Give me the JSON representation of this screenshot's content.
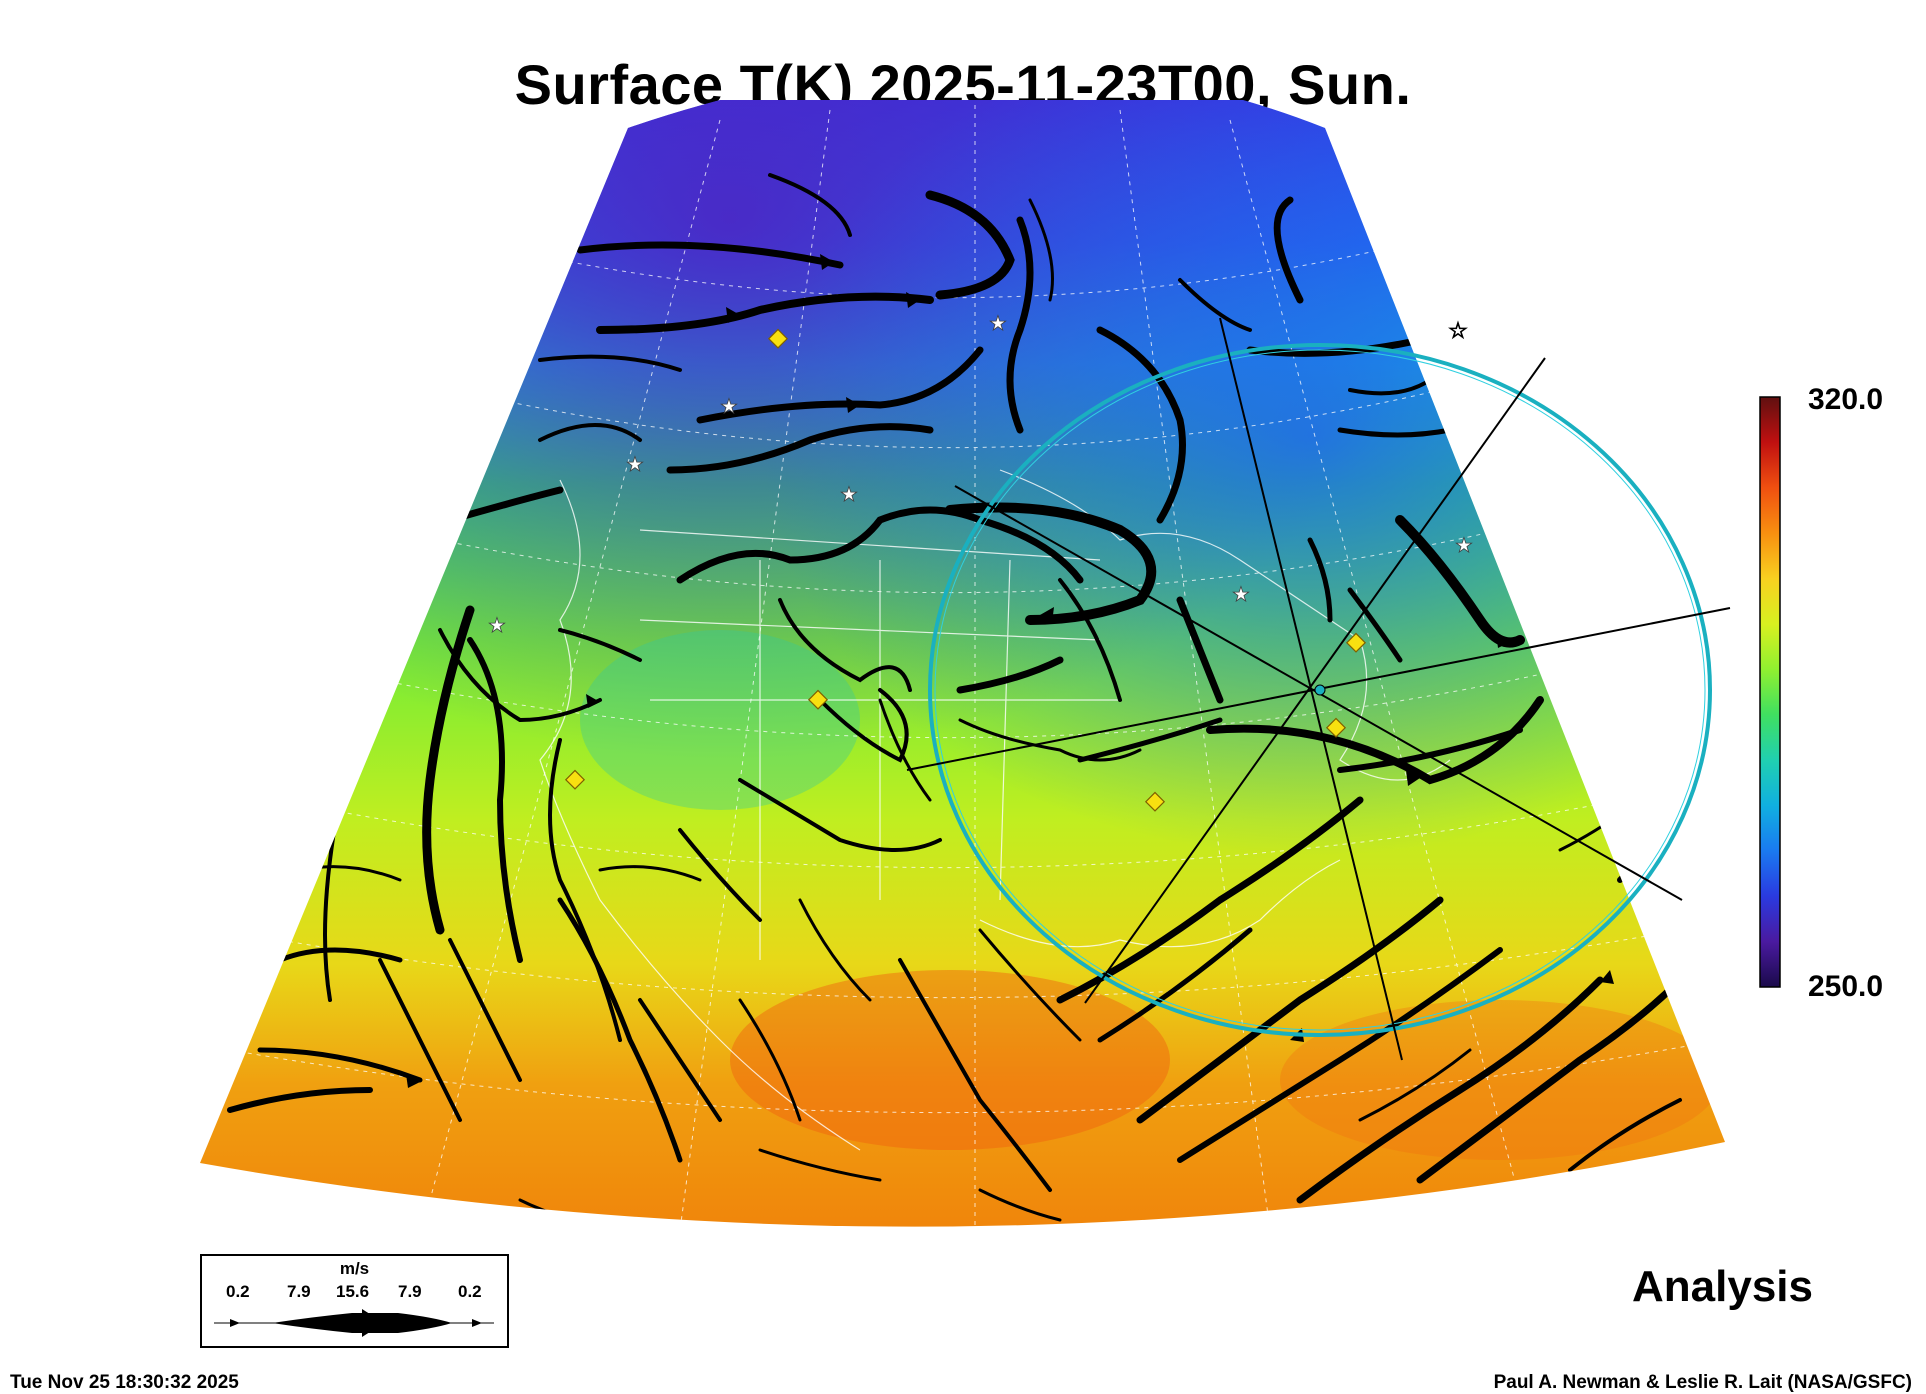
{
  "title": "Surface T(K) 2025-11-23T00, Sun.",
  "colorbar": {
    "max_label": "320.0",
    "min_label": "250.0",
    "min": 250,
    "max": 320,
    "colors": [
      "#1a0a4a",
      "#4a1aa0",
      "#2a3ae0",
      "#1a7af0",
      "#10b0e0",
      "#20d0b0",
      "#40e060",
      "#90f030",
      "#d8f020",
      "#f8d020",
      "#f89010",
      "#f05010",
      "#c01010",
      "#601010"
    ]
  },
  "wind_legend": {
    "unit": "m/s",
    "speeds": [
      "0.2",
      "7.9",
      "15.6",
      "7.9",
      "0.2"
    ]
  },
  "analysis_label": "Analysis",
  "timestamp": "Tue Nov 25 18:30:32 2025",
  "credit": "Paul A. Newman & Leslie R. Lait (NASA/GSFC)",
  "map": {
    "projection": "polar-conic sector over North America",
    "field_colors": {
      "cold": "#2a48e8",
      "cool": "#20c0d0",
      "mild": "#60e840",
      "warm": "#e8e020",
      "hot": "#f08a10"
    },
    "overlay_color": "#1ab0c0",
    "station_marker_color": "#f8e010"
  }
}
